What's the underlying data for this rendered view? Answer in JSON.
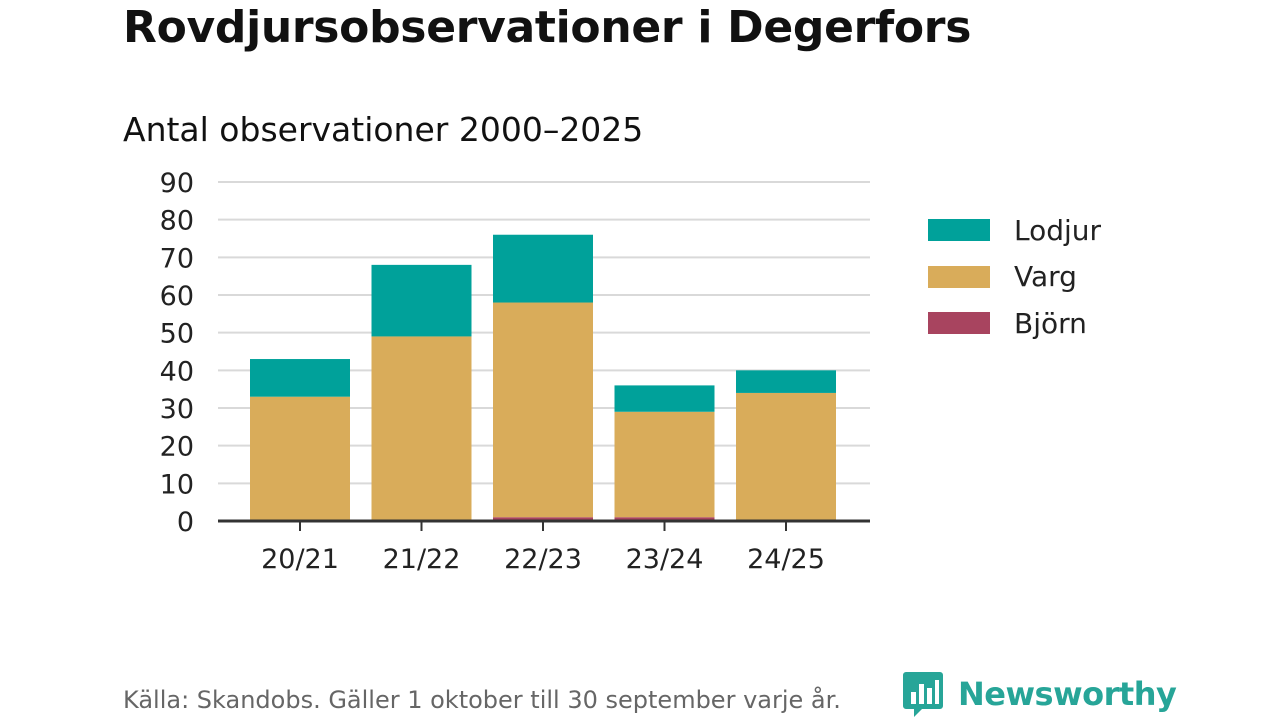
{
  "title": "Rovdjursobservationer i Degerfors",
  "subtitle": "Antal observationer 2000–2025",
  "source": "Källa: Skandobs. Gäller 1 oktober till 30 september varje år.",
  "brand": "Newsworthy",
  "colors": {
    "lodjur": "#00a19a",
    "varg": "#d9ac5a",
    "bjorn": "#a8445f",
    "grid": "#d9d9d9",
    "axis": "#333333",
    "brand": "#27a598"
  },
  "chart_data": {
    "type": "bar",
    "stacked": true,
    "title": "Antal observationer 2000–2025",
    "xlabel": "",
    "ylabel": "",
    "categories": [
      "20/21",
      "21/22",
      "22/23",
      "23/24",
      "24/25"
    ],
    "ylim": [
      0,
      90
    ],
    "yticks": [
      0,
      10,
      20,
      30,
      40,
      50,
      60,
      70,
      80,
      90
    ],
    "grid": true,
    "legend_position": "right",
    "series": [
      {
        "name": "Björn",
        "color": "#a8445f",
        "values": [
          0,
          0,
          1,
          1,
          0
        ]
      },
      {
        "name": "Varg",
        "color": "#d9ac5a",
        "values": [
          33,
          49,
          57,
          28,
          34
        ]
      },
      {
        "name": "Lodjur",
        "color": "#00a19a",
        "values": [
          10,
          19,
          18,
          7,
          6
        ]
      }
    ],
    "legend_order": [
      "Lodjur",
      "Varg",
      "Björn"
    ]
  }
}
